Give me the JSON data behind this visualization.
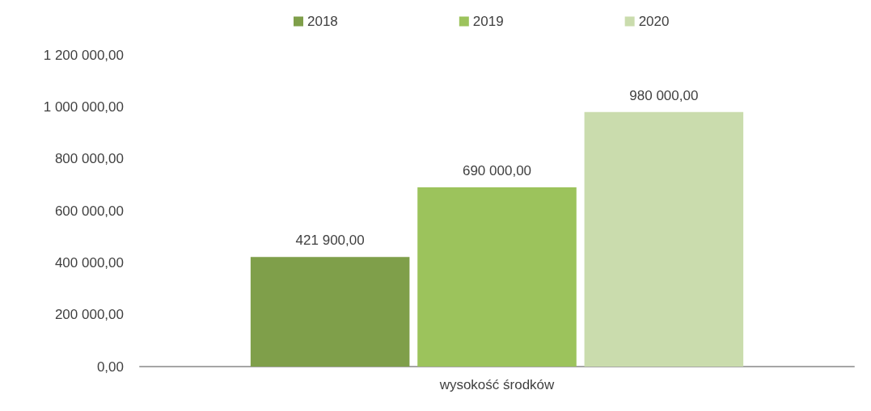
{
  "chart_data": {
    "type": "bar",
    "categories": [
      "wysokość środków"
    ],
    "series": [
      {
        "name": "2018",
        "color": "#7f9f4a",
        "values": [
          421900
        ],
        "value_labels": [
          "421 900,00"
        ]
      },
      {
        "name": "2019",
        "color": "#9cc35c",
        "values": [
          690000
        ],
        "value_labels": [
          "690 000,00"
        ]
      },
      {
        "name": "2020",
        "color": "#cadcad",
        "values": [
          980000
        ],
        "value_labels": [
          "980 000,00"
        ]
      }
    ],
    "ylim": [
      0,
      1200000
    ],
    "yticks": [
      {
        "value": 0,
        "label": "0,00"
      },
      {
        "value": 200000,
        "label": "200 000,00"
      },
      {
        "value": 400000,
        "label": "400 000,00"
      },
      {
        "value": 600000,
        "label": "600 000,00"
      },
      {
        "value": 800000,
        "label": "800 000,00"
      },
      {
        "value": 1000000,
        "label": "1 000 000,00"
      },
      {
        "value": 1200000,
        "label": "1 200 000,00"
      }
    ],
    "grid": false,
    "legend": "top"
  }
}
